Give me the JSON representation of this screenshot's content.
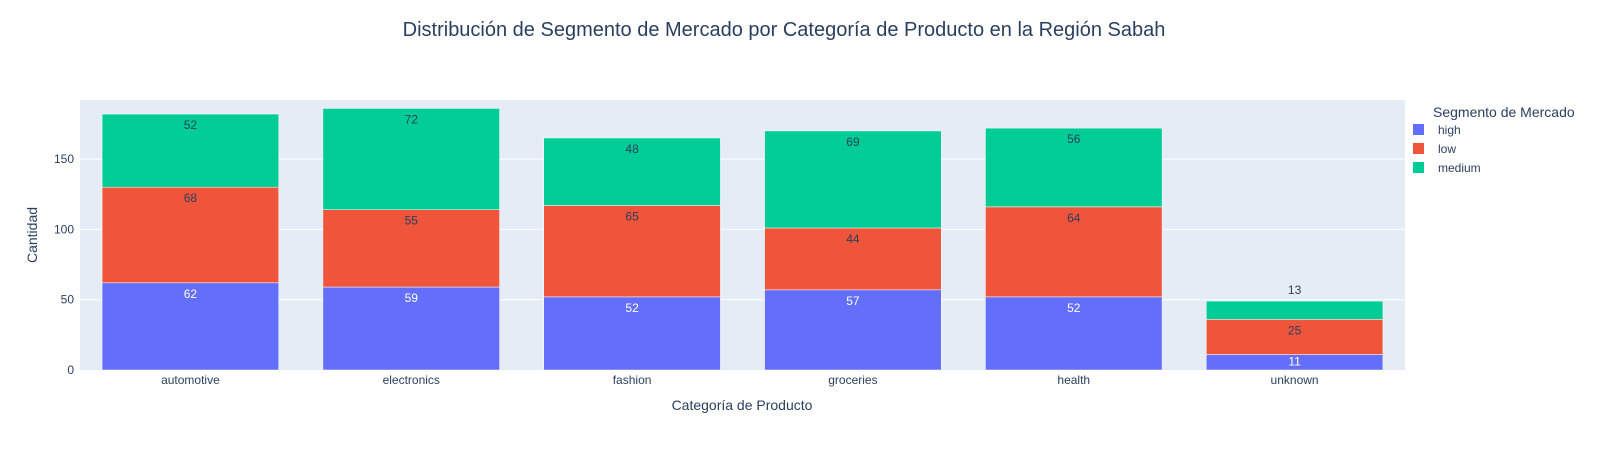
{
  "chart_data": {
    "type": "bar",
    "stacked": true,
    "title": "Distribución de Segmento de Mercado por Categoría de Producto en la Región Sabah",
    "xlabel": "Categoría de Producto",
    "ylabel": "Cantidad",
    "ylim": [
      0,
      192
    ],
    "yticks": [
      0,
      50,
      100,
      150
    ],
    "grid": true,
    "legend_title": "Segmento de Mercado",
    "legend_position": "top-right",
    "categories": [
      "automotive",
      "electronics",
      "fashion",
      "groceries",
      "health",
      "unknown"
    ],
    "series": [
      {
        "name": "high",
        "color": "#636efa",
        "values": [
          62,
          59,
          52,
          57,
          52,
          11
        ]
      },
      {
        "name": "low",
        "color": "#ef553b",
        "values": [
          68,
          55,
          65,
          44,
          64,
          25
        ]
      },
      {
        "name": "medium",
        "color": "#00cc96",
        "values": [
          52,
          72,
          48,
          69,
          56,
          13
        ]
      }
    ],
    "colors": {
      "plot_background": "#e5ecf6",
      "gridline": "#ffffff",
      "text": "#2a3f5f"
    }
  }
}
